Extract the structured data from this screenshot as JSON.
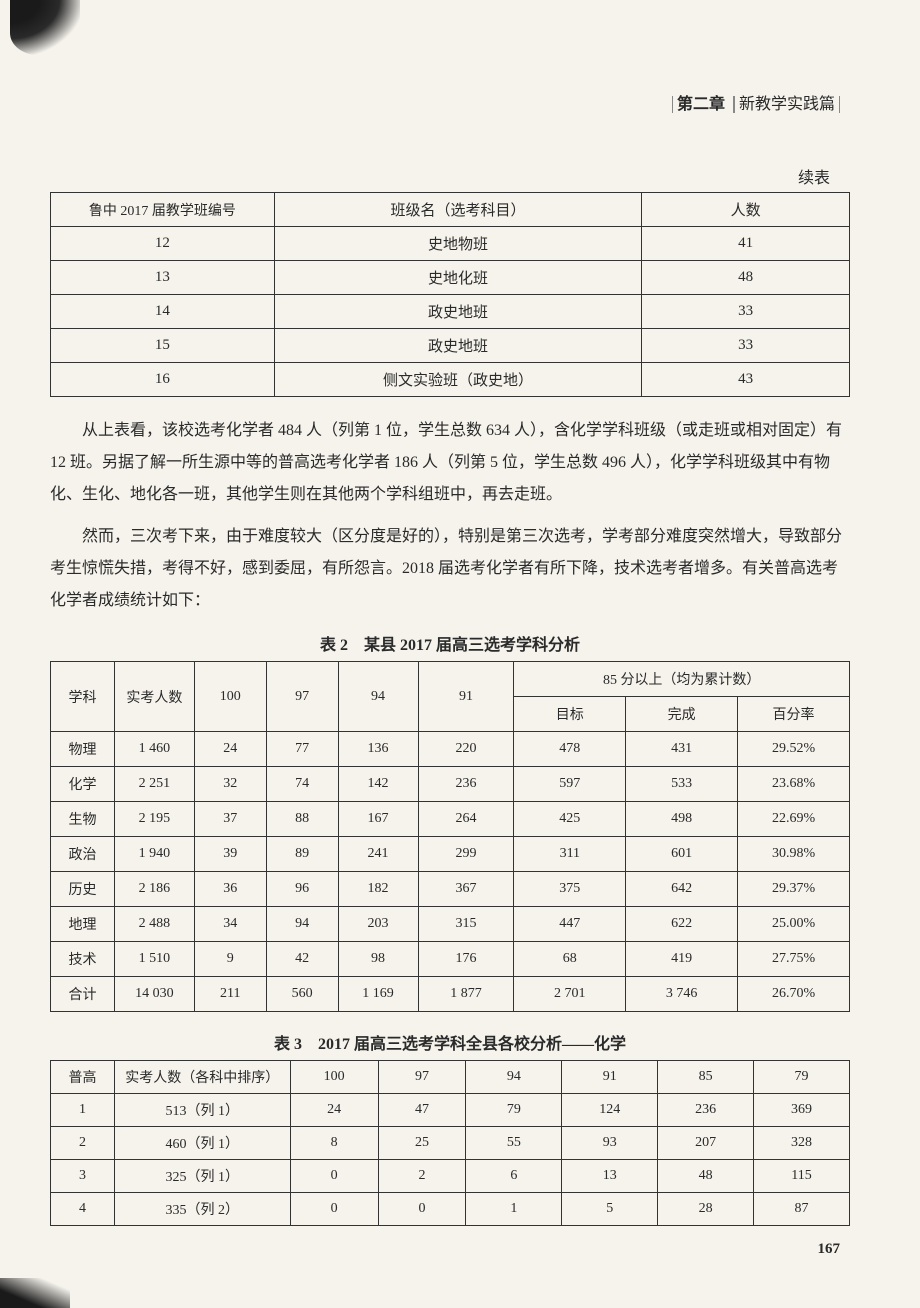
{
  "header": {
    "chapter": "第二章",
    "title": "新教学实践篇"
  },
  "cont_label": "续表",
  "table1": {
    "headers": [
      "鲁中 2017 届教学班编号",
      "班级名（选考科目）",
      "人数"
    ],
    "rows": [
      [
        "12",
        "史地物班",
        "41"
      ],
      [
        "13",
        "史地化班",
        "48"
      ],
      [
        "14",
        "政史地班",
        "33"
      ],
      [
        "15",
        "政史地班",
        "33"
      ],
      [
        "16",
        "侧文实验班（政史地）",
        "43"
      ]
    ]
  },
  "para1": "从上表看，该校选考化学者 484 人（列第 1 位，学生总数 634 人），含化学学科班级（或走班或相对固定）有 12 班。另据了解一所生源中等的普高选考化学者 186 人（列第 5 位，学生总数 496 人），化学学科班级其中有物化、生化、地化各一班，其他学生则在其他两个学科组班中，再去走班。",
  "para2": "然而，三次考下来，由于难度较大（区分度是好的），特别是第三次选考，学考部分难度突然增大，导致部分考生惊慌失措，考得不好，感到委屈，有所怨言。2018 届选考化学者有所下降，技术选考者增多。有关普高选考化学者成绩统计如下：",
  "table2": {
    "title": "表 2　某县 2017 届高三选考学科分析",
    "headers_row1": [
      "学科",
      "实考人数",
      "100",
      "97",
      "94",
      "91",
      "85 分以上（均为累计数）"
    ],
    "headers_row2": [
      "目标",
      "完成",
      "百分率"
    ],
    "rows": [
      [
        "物理",
        "1 460",
        "24",
        "77",
        "136",
        "220",
        "478",
        "431",
        "29.52%"
      ],
      [
        "化学",
        "2 251",
        "32",
        "74",
        "142",
        "236",
        "597",
        "533",
        "23.68%"
      ],
      [
        "生物",
        "2 195",
        "37",
        "88",
        "167",
        "264",
        "425",
        "498",
        "22.69%"
      ],
      [
        "政治",
        "1 940",
        "39",
        "89",
        "241",
        "299",
        "311",
        "601",
        "30.98%"
      ],
      [
        "历史",
        "2 186",
        "36",
        "96",
        "182",
        "367",
        "375",
        "642",
        "29.37%"
      ],
      [
        "地理",
        "2 488",
        "34",
        "94",
        "203",
        "315",
        "447",
        "622",
        "25.00%"
      ],
      [
        "技术",
        "1 510",
        "9",
        "42",
        "98",
        "176",
        "68",
        "419",
        "27.75%"
      ],
      [
        "合计",
        "14 030",
        "211",
        "560",
        "1 169",
        "1 877",
        "2 701",
        "3 746",
        "26.70%"
      ]
    ]
  },
  "table3": {
    "title": "表 3　2017 届高三选考学科全县各校分析——化学",
    "headers": [
      "普高",
      "实考人数（各科中排序）",
      "100",
      "97",
      "94",
      "91",
      "85",
      "79"
    ],
    "rows": [
      [
        "1",
        "513（列 1）",
        "24",
        "47",
        "79",
        "124",
        "236",
        "369"
      ],
      [
        "2",
        "460（列 1）",
        "8",
        "25",
        "55",
        "93",
        "207",
        "328"
      ],
      [
        "3",
        "325（列 1）",
        "0",
        "2",
        "6",
        "13",
        "48",
        "115"
      ],
      [
        "4",
        "335（列 2）",
        "0",
        "0",
        "1",
        "5",
        "28",
        "87"
      ]
    ]
  },
  "page_number": "167"
}
